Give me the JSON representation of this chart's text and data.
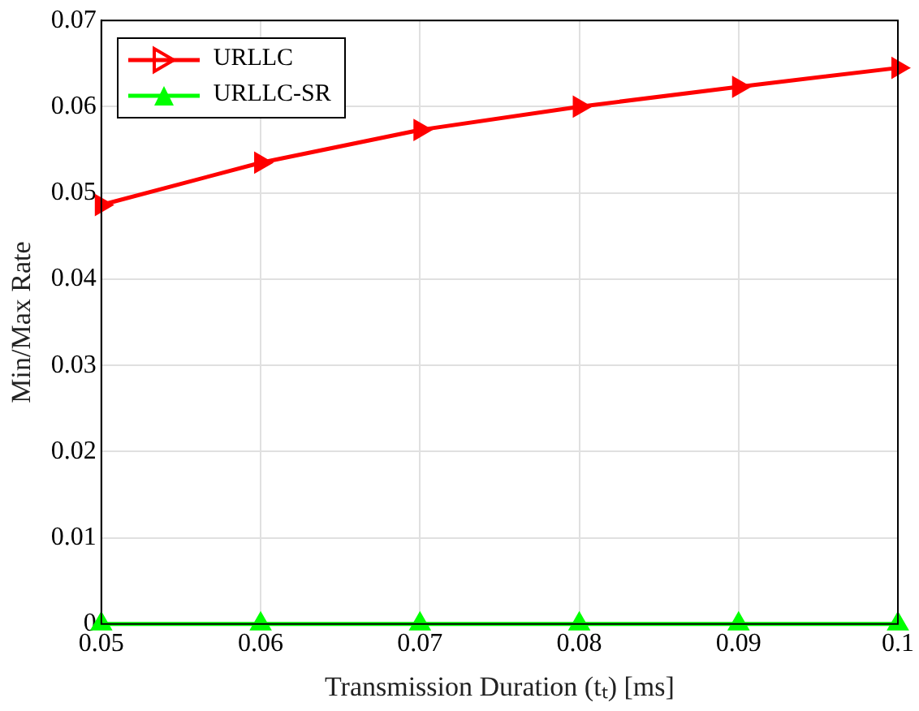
{
  "chart_data": {
    "type": "line",
    "xlabel": "Transmission Duration (tₜ) [ms]",
    "ylabel": "Min/Max Rate",
    "x": [
      0.05,
      0.06,
      0.07,
      0.08,
      0.09,
      0.1
    ],
    "series": [
      {
        "name": "URLLC",
        "color": "#ff0000",
        "marker": "triangle-right",
        "values": [
          0.0486,
          0.0535,
          0.0573,
          0.06,
          0.0623,
          0.0645
        ]
      },
      {
        "name": "URLLC-SR",
        "color": "#00ff00",
        "marker": "triangle",
        "values": [
          0,
          0,
          0,
          0,
          0,
          0
        ]
      }
    ],
    "xlim": [
      0.05,
      0.1
    ],
    "xticks": [
      0.05,
      0.06,
      0.07,
      0.08,
      0.09,
      0.1
    ],
    "ylim": [
      0,
      0.07
    ],
    "yticks": [
      0,
      0.01,
      0.02,
      0.03,
      0.04,
      0.05,
      0.06,
      0.07
    ],
    "grid": true,
    "legend": "top left",
    "line_style": "solid"
  }
}
